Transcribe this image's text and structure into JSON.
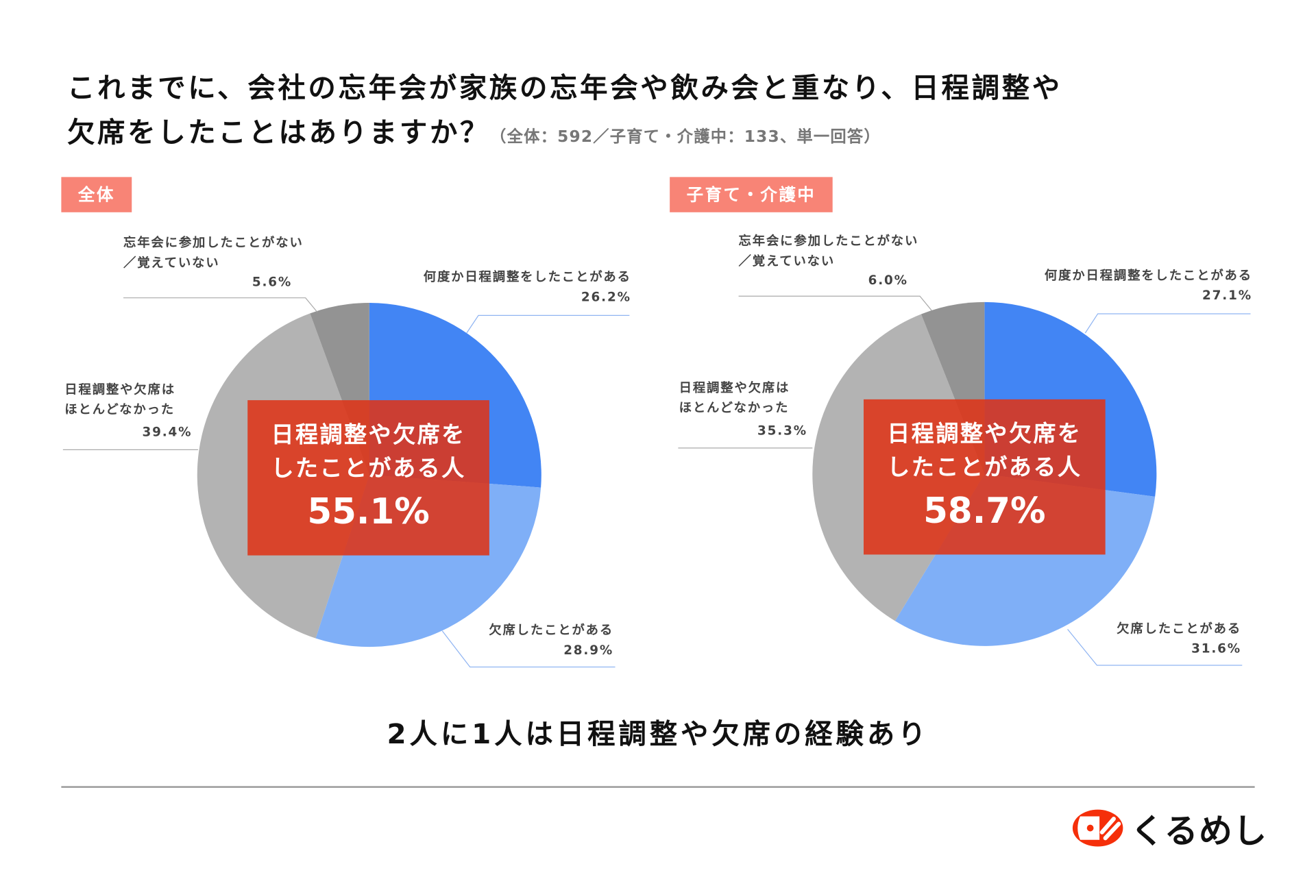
{
  "title": {
    "line1": "これまでに、会社の忘年会が家族の忘年会や飲み会と重なり、日程調整や",
    "line2": "欠席をしたことはありますか？",
    "note": "（全体：592／子育て・介護中：133、単一回答）"
  },
  "conclusion": "2人に1人は日程調整や欠席の経験あり",
  "logo": {
    "text": "くるめし",
    "color": "#F52F0A"
  },
  "colors": {
    "blue": "#4285F4",
    "light_blue": "#7FAFF7",
    "gray": "#B3B3B3",
    "dark_gray": "#939393",
    "tag": "#F88476",
    "highlight": "#DE3418"
  },
  "chart_data": [
    {
      "type": "pie",
      "title": "全体",
      "start": "top",
      "direction": "clockwise",
      "slices": [
        {
          "label": "何度か日程調整をしたことがある",
          "value": 26.2,
          "display": "26.2%",
          "color": "#4285F4"
        },
        {
          "label": "欠席したことがある",
          "value": 28.9,
          "display": "28.9%",
          "color": "#7FAFF7"
        },
        {
          "label": "日程調整や欠席はほとんどなかった",
          "label_lines": [
            "日程調整や欠席は",
            "ほとんどなかった"
          ],
          "value": 39.4,
          "display": "39.4%",
          "color": "#B3B3B3"
        },
        {
          "label": "忘年会に参加したことがない／覚えていない",
          "label_lines": [
            "忘年会に参加したことがない",
            "／覚えていない"
          ],
          "value": 5.6,
          "display": "5.6%",
          "color": "#939393"
        }
      ],
      "callout": {
        "lines": [
          "日程調整や欠席を",
          "したことがある人"
        ],
        "value": "55.1%"
      }
    },
    {
      "type": "pie",
      "title": "子育て・介護中",
      "start": "top",
      "direction": "clockwise",
      "slices": [
        {
          "label": "何度か日程調整をしたことがある",
          "value": 27.1,
          "display": "27.1%",
          "color": "#4285F4"
        },
        {
          "label": "欠席したことがある",
          "value": 31.6,
          "display": "31.6%",
          "color": "#7FAFF7"
        },
        {
          "label": "日程調整や欠席はほとんどなかった",
          "label_lines": [
            "日程調整や欠席は",
            "ほとんどなかった"
          ],
          "value": 35.3,
          "display": "35.3%",
          "color": "#B3B3B3"
        },
        {
          "label": "忘年会に参加したことがない／覚えていない",
          "label_lines": [
            "忘年会に参加したことがない",
            "／覚えていない"
          ],
          "value": 6.0,
          "display": "6.0%",
          "color": "#939393"
        }
      ],
      "callout": {
        "lines": [
          "日程調整や欠席を",
          "したことがある人"
        ],
        "value": "58.7%"
      }
    }
  ]
}
